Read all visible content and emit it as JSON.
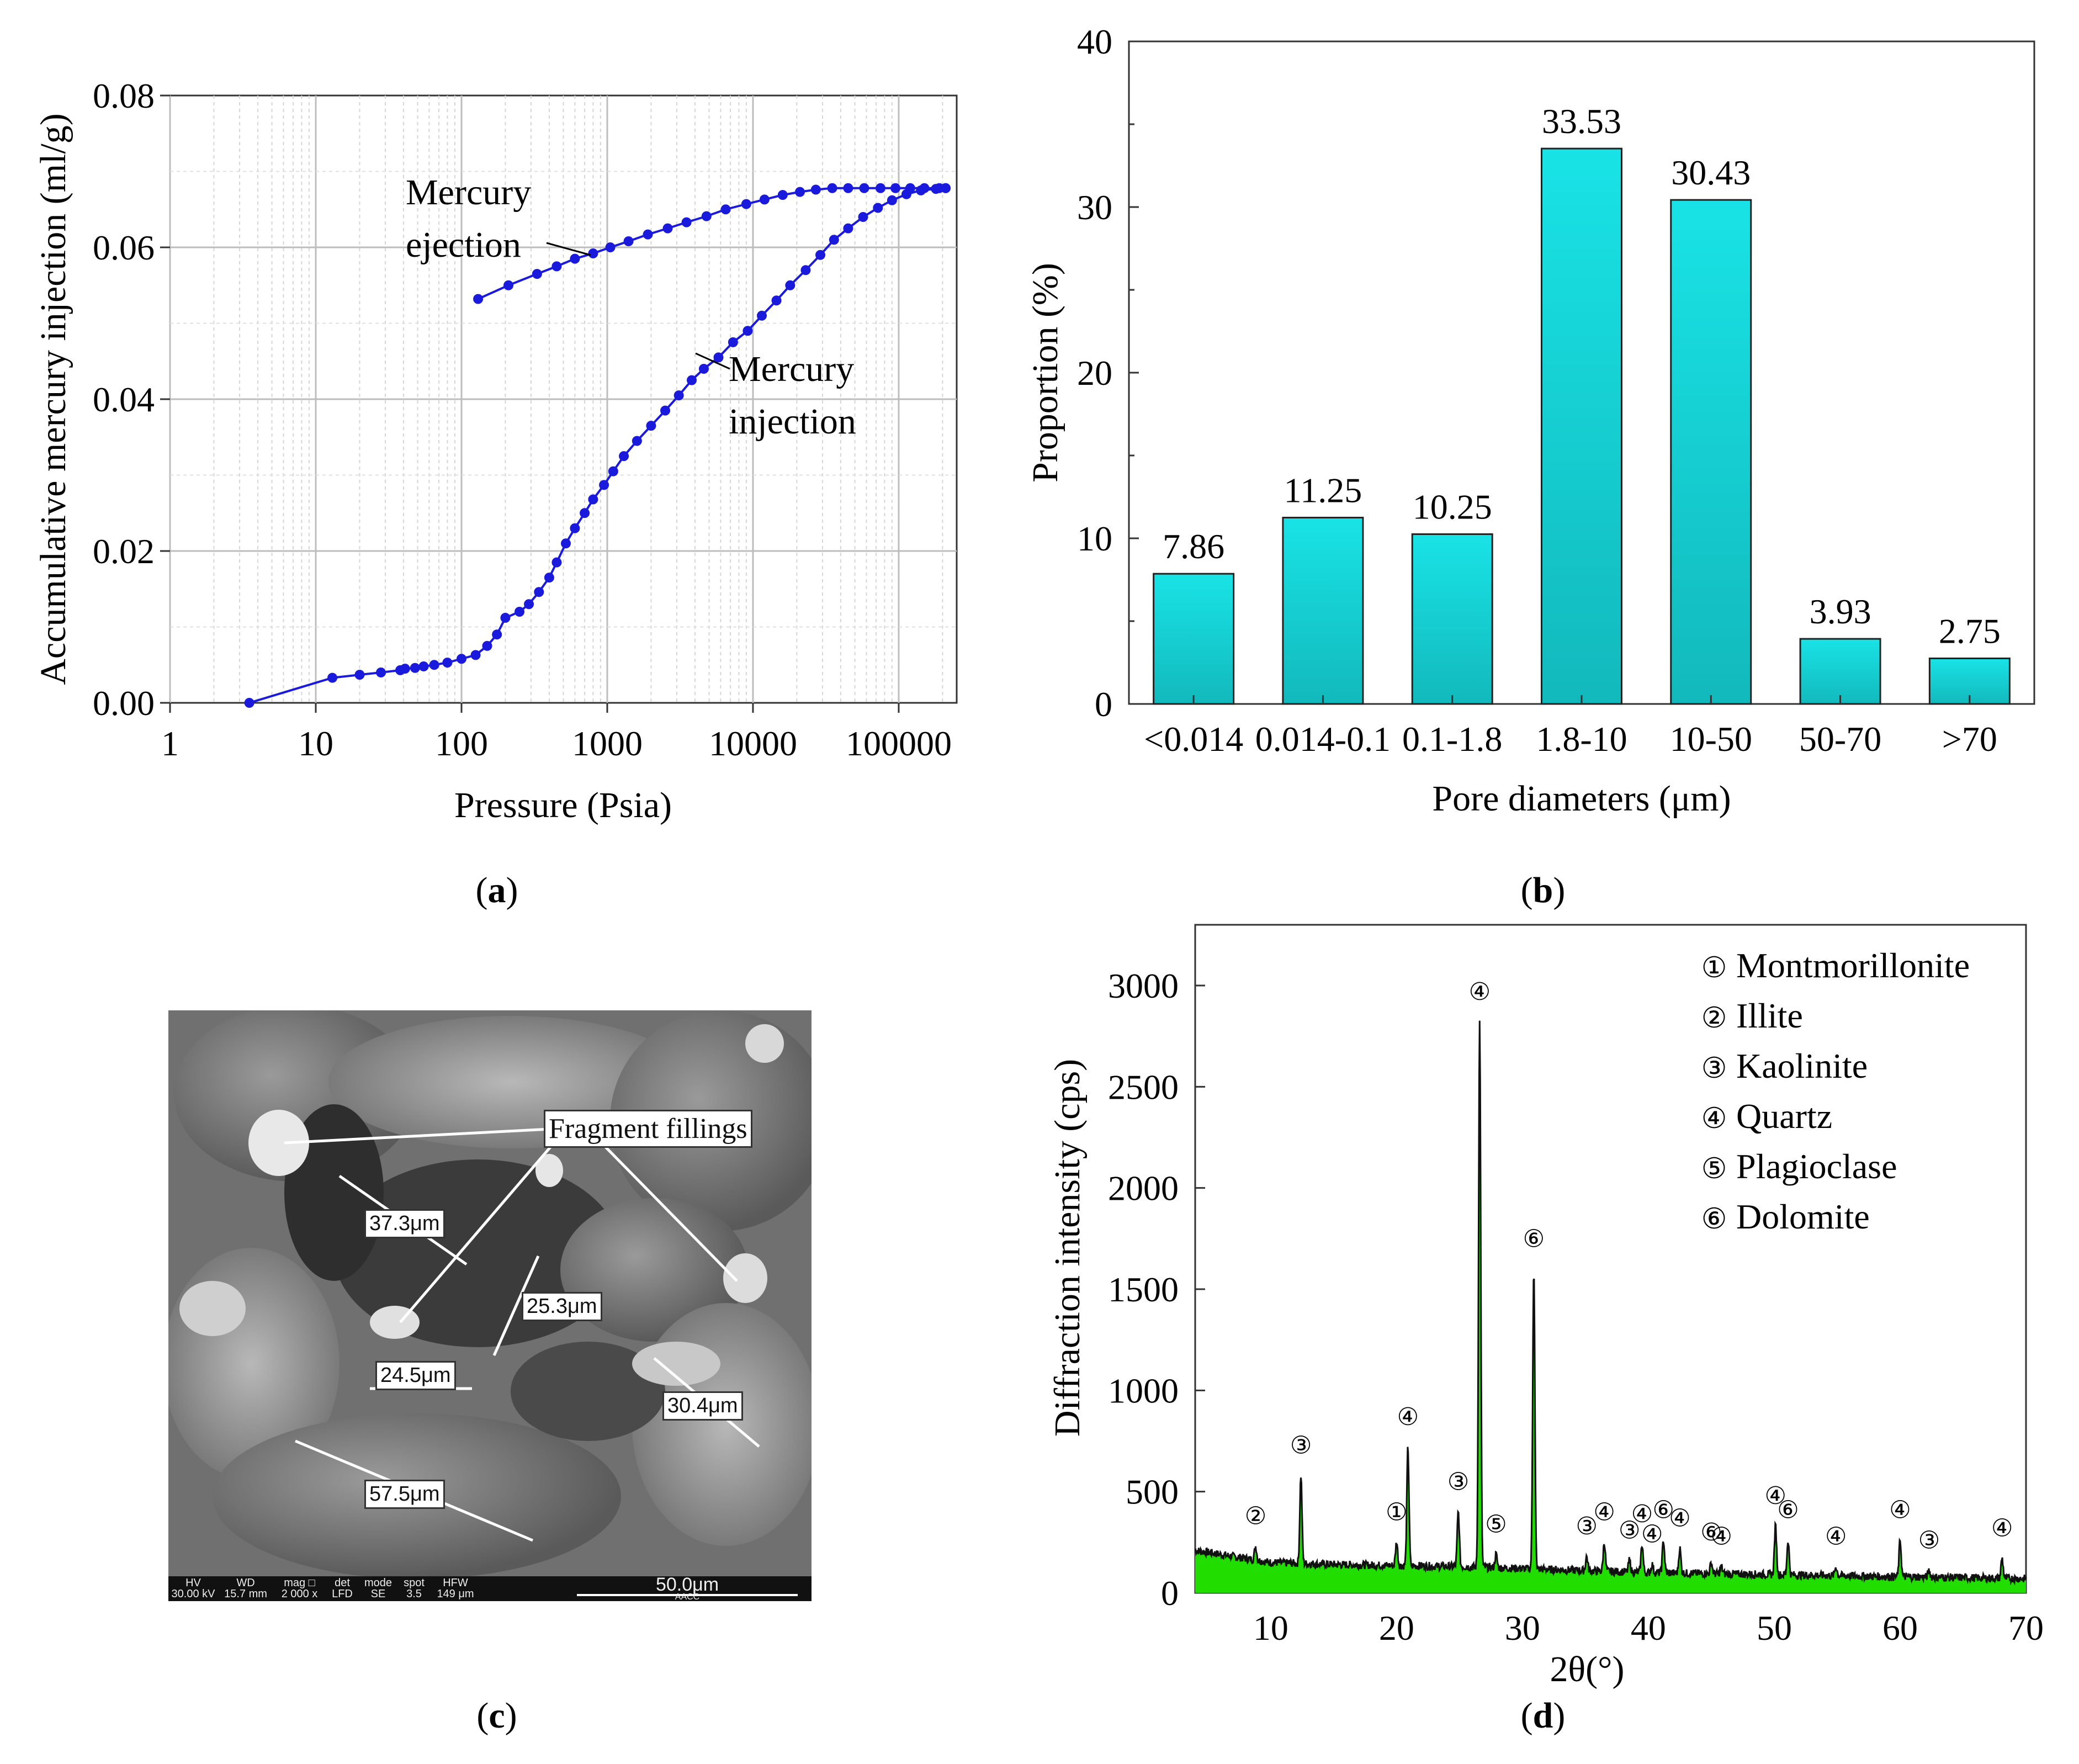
{
  "panel_a": {
    "caption": "a",
    "title": "",
    "xlabel": "Pressure (Psia)",
    "ylabel": "Accumulative mercury injection (ml/g)",
    "y_ticks": [
      "0.00",
      "0.02",
      "0.04",
      "0.06",
      "0.08"
    ],
    "x_ticks": [
      "1",
      "10",
      "100",
      "1000",
      "10000",
      "100000"
    ],
    "annotations": {
      "ejection_line1": "Mercury",
      "ejection_line2": "ejection",
      "injection_line1": "Mercury",
      "injection_line2": "injection"
    },
    "series_color": "#1a1adc"
  },
  "panel_b": {
    "caption": "b",
    "xlabel": "Pore diameters (μm)",
    "ylabel": "Proportion (%)",
    "y_ticks": [
      "0",
      "10",
      "20",
      "30",
      "40"
    ],
    "bar_color": "#19e3e6",
    "categories": [
      "<0.014",
      "0.014-0.1",
      "0.1-1.8",
      "1.8-10",
      "10-50",
      "50-70",
      ">70"
    ],
    "value_labels": [
      "7.86",
      "11.25",
      "10.25",
      "33.53",
      "30.43",
      "3.93",
      "2.75"
    ]
  },
  "panel_c": {
    "caption": "c",
    "labels": {
      "fragment": "Fragment fillings",
      "m1": "37.3μm",
      "m2": "25.3μm",
      "m3": "24.5μm",
      "m4": "30.4μm",
      "m5": "57.5μm"
    },
    "info_bar": {
      "hv_h": "HV",
      "hv_v": "30.00 kV",
      "wd_h": "WD",
      "wd_v": "15.7 mm",
      "mag_h": "mag □",
      "mag_v": "2 000 x",
      "det_h": "det",
      "det_v": "LFD",
      "mode_h": "mode",
      "mode_v": "SE",
      "spot_h": "spot",
      "spot_v": "3.5",
      "hfw_h": "HFW",
      "hfw_v": "149 μm",
      "scale": "50.0μm",
      "lab": "AACC"
    }
  },
  "panel_d": {
    "caption": "d",
    "xlabel": "2θ(°)",
    "ylabel": "Diffraction intensity (cps)",
    "y_ticks": [
      "0",
      "500",
      "1000",
      "1500",
      "2000",
      "2500",
      "3000"
    ],
    "x_ticks": [
      "10",
      "20",
      "30",
      "40",
      "50",
      "60",
      "70"
    ],
    "fill_color": "#22dd00",
    "legend": [
      {
        "mark": "①",
        "name": "Montmorillonite"
      },
      {
        "mark": "②",
        "name": "Illite"
      },
      {
        "mark": "③",
        "name": "Kaolinite"
      },
      {
        "mark": "④",
        "name": "Quartz"
      },
      {
        "mark": "⑤",
        "name": "Plagioclase"
      },
      {
        "mark": "⑥",
        "name": "Dolomite"
      }
    ]
  },
  "chart_data": [
    {
      "type": "line",
      "panel": "a",
      "title": "",
      "xlabel": "Pressure (Psia)",
      "ylabel": "Accumulative mercury injection (ml/g)",
      "xscale": "log",
      "xlim": [
        1,
        250000
      ],
      "ylim": [
        0,
        0.08
      ],
      "series": [
        {
          "name": "Mercury injection",
          "x": [
            3.5,
            13,
            20,
            28,
            38,
            41,
            48,
            55,
            65,
            80,
            100,
            125,
            150,
            175,
            200,
            250,
            290,
            340,
            400,
            450,
            520,
            600,
            700,
            800,
            950,
            1100,
            1300,
            1600,
            2000,
            2500,
            3100,
            3800,
            4600,
            5800,
            7300,
            9200,
            11500,
            14500,
            18000,
            23000,
            29000,
            36000,
            45000,
            57000,
            72000,
            90000,
            113000,
            142000,
            180000,
            210000
          ],
          "y": [
            0.0,
            0.0033,
            0.0037,
            0.004,
            0.0043,
            0.0045,
            0.0046,
            0.0048,
            0.005,
            0.0053,
            0.0058,
            0.0063,
            0.0075,
            0.009,
            0.0112,
            0.012,
            0.013,
            0.0146,
            0.0165,
            0.0185,
            0.021,
            0.023,
            0.025,
            0.0268,
            0.0287,
            0.0305,
            0.0325,
            0.0345,
            0.0365,
            0.0385,
            0.0405,
            0.0425,
            0.044,
            0.0455,
            0.0475,
            0.049,
            0.051,
            0.053,
            0.055,
            0.057,
            0.059,
            0.061,
            0.0625,
            0.064,
            0.0652,
            0.0662,
            0.067,
            0.0675,
            0.0677,
            0.0678
          ]
        },
        {
          "name": "Mercury ejection",
          "x": [
            130,
            210,
            330,
            450,
            600,
            800,
            1050,
            1400,
            1900,
            2600,
            3500,
            4800,
            6500,
            9000,
            12000,
            16000,
            21000,
            27000,
            35000,
            45000,
            58000,
            75000,
            95000,
            120000,
            150000,
            190000,
            210000
          ],
          "y": [
            0.0532,
            0.055,
            0.0565,
            0.0575,
            0.0585,
            0.0592,
            0.06,
            0.0608,
            0.0617,
            0.0625,
            0.0633,
            0.0641,
            0.065,
            0.0657,
            0.0663,
            0.0669,
            0.0673,
            0.0676,
            0.0678,
            0.0678,
            0.0678,
            0.0678,
            0.0678,
            0.0678,
            0.0678,
            0.0678,
            0.0678
          ]
        }
      ]
    },
    {
      "type": "bar",
      "panel": "b",
      "title": "",
      "xlabel": "Pore diameters (μm)",
      "ylabel": "Proportion (%)",
      "ylim": [
        0,
        40
      ],
      "categories": [
        "<0.014",
        "0.014-0.1",
        "0.1-1.8",
        "1.8-10",
        "10-50",
        "50-70",
        ">70"
      ],
      "values": [
        7.86,
        11.25,
        10.25,
        33.53,
        30.43,
        3.93,
        2.75
      ]
    },
    {
      "type": "area",
      "panel": "d",
      "title": "",
      "xlabel": "2θ(°)",
      "ylabel": "Diffraction intensity (cps)",
      "xlim": [
        4,
        70
      ],
      "ylim": [
        0,
        3300
      ],
      "baseline_x": [
        4,
        10,
        15,
        20,
        25,
        30,
        35,
        40,
        45,
        50,
        55,
        60,
        65,
        70
      ],
      "baseline_y": [
        210,
        150,
        140,
        135,
        130,
        120,
        110,
        100,
        95,
        90,
        85,
        80,
        75,
        70
      ],
      "peaks": [
        {
          "x": 8.8,
          "y": 230,
          "phase": "②"
        },
        {
          "x": 12.4,
          "y": 580,
          "phase": "③"
        },
        {
          "x": 20.0,
          "y": 250,
          "phase": "①"
        },
        {
          "x": 20.9,
          "y": 720,
          "phase": "④"
        },
        {
          "x": 24.9,
          "y": 400,
          "phase": "③"
        },
        {
          "x": 26.6,
          "y": 2820,
          "phase": "④"
        },
        {
          "x": 27.9,
          "y": 190,
          "phase": "⑤"
        },
        {
          "x": 30.9,
          "y": 1600,
          "phase": "⑥"
        },
        {
          "x": 35.1,
          "y": 180,
          "phase": "③"
        },
        {
          "x": 36.5,
          "y": 250,
          "phase": "④"
        },
        {
          "x": 38.5,
          "y": 160,
          "phase": "③"
        },
        {
          "x": 39.5,
          "y": 240,
          "phase": "④"
        },
        {
          "x": 40.3,
          "y": 140,
          "phase": "④"
        },
        {
          "x": 41.2,
          "y": 260,
          "phase": "⑥"
        },
        {
          "x": 42.5,
          "y": 220,
          "phase": "④"
        },
        {
          "x": 45.0,
          "y": 150,
          "phase": "⑥"
        },
        {
          "x": 45.8,
          "y": 130,
          "phase": "④"
        },
        {
          "x": 50.1,
          "y": 330,
          "phase": "④"
        },
        {
          "x": 51.1,
          "y": 260,
          "phase": "⑥"
        },
        {
          "x": 54.9,
          "y": 130,
          "phase": "④"
        },
        {
          "x": 60.0,
          "y": 260,
          "phase": "④"
        },
        {
          "x": 62.3,
          "y": 110,
          "phase": "③"
        },
        {
          "x": 68.1,
          "y": 170,
          "phase": "④"
        }
      ]
    }
  ]
}
